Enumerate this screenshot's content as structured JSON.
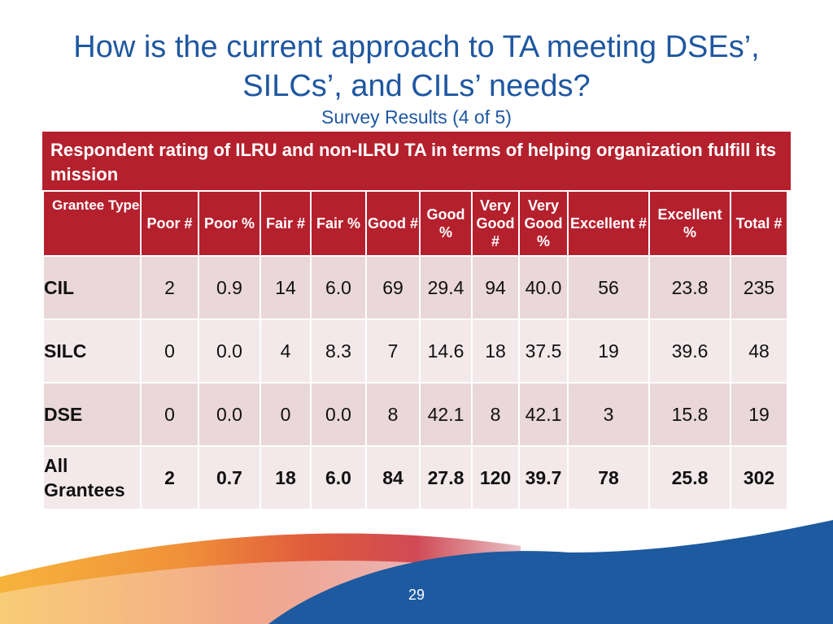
{
  "slide": {
    "title": "How is the current approach to TA meeting DSEs’, SILCs’, and CILs’ needs?",
    "subtitle": "Survey Results (4 of 5)",
    "banner": "Respondent rating of ILRU and non-ILRU TA in terms of helping organization fulfill its mission",
    "page_number": "29"
  },
  "table": {
    "headers": [
      "Grantee Type",
      "Poor #",
      "Poor %",
      "Fair #",
      "Fair %",
      "Good #",
      "Good %",
      "Very Good #",
      "Very Good %",
      "Excellent #",
      "Excellent %",
      "Total #"
    ],
    "rows": [
      [
        "CIL",
        "2",
        "0.9",
        "14",
        "6.0",
        "69",
        "29.4",
        "94",
        "40.0",
        "56",
        "23.8",
        "235"
      ],
      [
        "SILC",
        "0",
        "0.0",
        "4",
        "8.3",
        "7",
        "14.6",
        "18",
        "37.5",
        "19",
        "39.6",
        "48"
      ],
      [
        "DSE",
        "0",
        "0.0",
        "0",
        "0.0",
        "8",
        "42.1",
        "8",
        "42.1",
        "3",
        "15.8",
        "19"
      ],
      [
        "All Grantees",
        "2",
        "0.7",
        "18",
        "6.0",
        "84",
        "27.8",
        "120",
        "39.7",
        "78",
        "25.8",
        "302"
      ]
    ]
  },
  "colors": {
    "title": "#1f57a0",
    "banner": "#b5202d",
    "row_odd": "#e9d7d9",
    "row_even": "#f3e9ea",
    "footer_blue": "#1d5aa0",
    "footer_orange": "#f3a43a"
  }
}
